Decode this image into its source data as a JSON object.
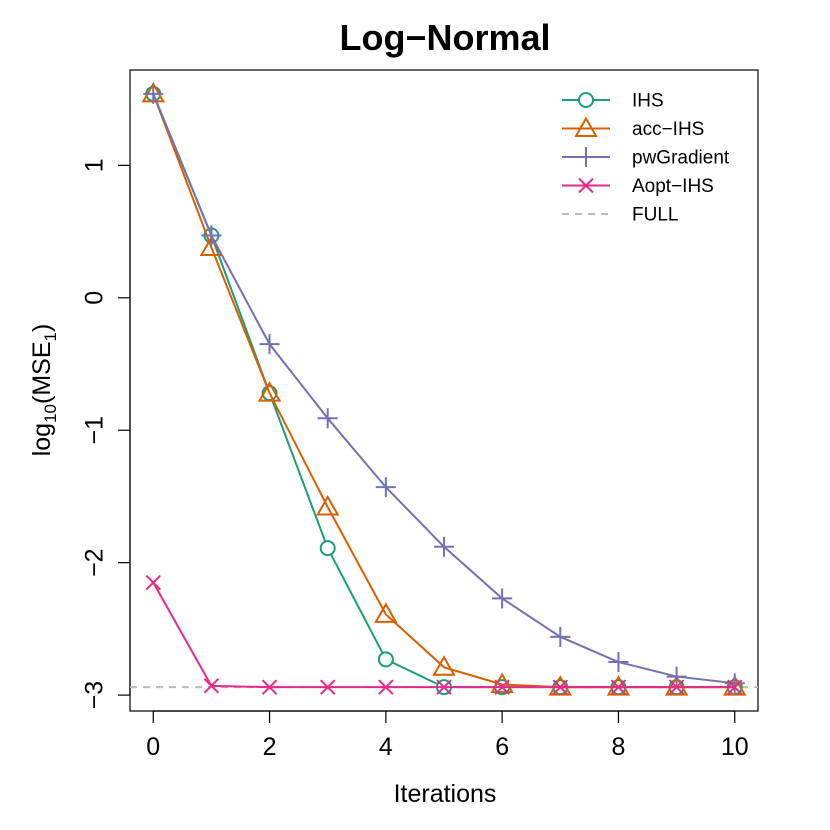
{
  "chart_data": {
    "type": "line",
    "title": "Log−Normal",
    "xlabel": "Iterations",
    "ylabel": {
      "base": "log",
      "base_sub": "10",
      "open": "(MSE",
      "sub": "1",
      "close": ")"
    },
    "xlim": [
      -0.4,
      10.4
    ],
    "ylim": [
      -3.12,
      1.72
    ],
    "x_ticks": [
      0,
      2,
      4,
      6,
      8,
      10
    ],
    "x_tick_labels": [
      "0",
      "2",
      "4",
      "6",
      "8",
      "10"
    ],
    "y_ticks": [
      -3,
      -2,
      -1,
      0,
      1
    ],
    "y_tick_labels": [
      "−3",
      "−2",
      "−1",
      "0",
      "1"
    ],
    "grid": false,
    "legend_position": "top-right",
    "x": [
      0,
      1,
      2,
      3,
      4,
      5,
      6,
      7,
      8,
      9,
      10
    ],
    "series": [
      {
        "name": "IHS",
        "marker": "circle",
        "color": "#1b9e77",
        "values": [
          1.54,
          0.47,
          -0.72,
          -1.89,
          -2.73,
          -2.94,
          -2.94,
          -2.94,
          -2.94,
          -2.94,
          -2.94
        ]
      },
      {
        "name": "acc−IHS",
        "marker": "triangle",
        "color": "#d95f02",
        "values": [
          1.54,
          0.38,
          -0.72,
          -1.58,
          -2.39,
          -2.79,
          -2.92,
          -2.94,
          -2.94,
          -2.94,
          -2.94
        ]
      },
      {
        "name": "pwGradient",
        "marker": "plus",
        "color": "#7570b3",
        "values": [
          1.54,
          0.47,
          -0.35,
          -0.91,
          -1.43,
          -1.88,
          -2.27,
          -2.56,
          -2.75,
          -2.86,
          -2.91
        ]
      },
      {
        "name": "Aopt−IHS",
        "marker": "cross",
        "color": "#e7298a",
        "values": [
          -2.15,
          -2.93,
          -2.94,
          -2.94,
          -2.94,
          -2.94,
          -2.94,
          -2.94,
          -2.94,
          -2.94,
          -2.94
        ]
      }
    ],
    "reference_line": {
      "name": "FULL",
      "y": -2.94,
      "color": "#bbbbbb",
      "style": "dashed"
    }
  }
}
